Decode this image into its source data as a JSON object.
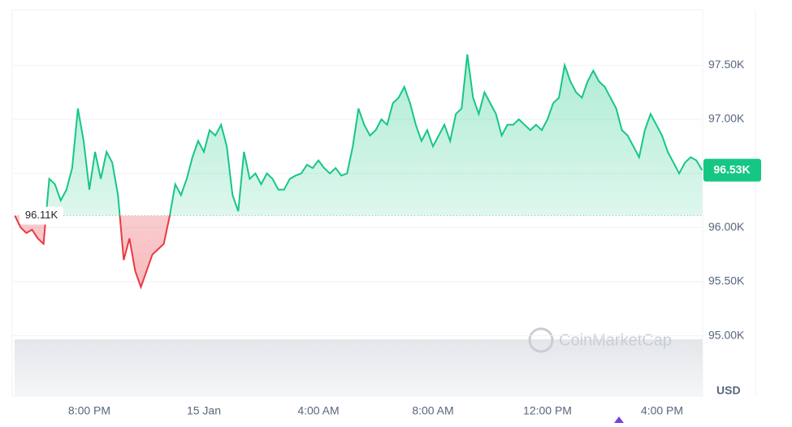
{
  "chart_data": {
    "type": "line",
    "categories": [
      null,
      null,
      null,
      null,
      null,
      null,
      null,
      null,
      null,
      null,
      null,
      null,
      null,
      "8:00 PM",
      null,
      null,
      null,
      null,
      null,
      null,
      null,
      null,
      null,
      null,
      null,
      null,
      null,
      null,
      null,
      null,
      null,
      null,
      null,
      "15 Jan",
      null,
      null,
      null,
      null,
      null,
      null,
      null,
      null,
      null,
      null,
      null,
      null,
      null,
      null,
      null,
      null,
      null,
      null,
      null,
      "4:00 AM",
      null,
      null,
      null,
      null,
      null,
      null,
      null,
      null,
      null,
      null,
      null,
      null,
      null,
      null,
      null,
      null,
      null,
      null,
      null,
      "8:00 AM",
      null,
      null,
      null,
      null,
      null,
      null,
      null,
      null,
      null,
      null,
      null,
      null,
      null,
      null,
      null,
      null,
      null,
      null,
      null,
      "12:00 PM",
      null,
      null,
      null,
      null,
      null,
      null,
      null,
      null,
      null,
      null,
      null,
      null,
      null,
      null,
      null,
      null,
      null,
      null,
      null,
      "4:00 PM",
      null,
      null,
      null,
      null,
      null,
      null,
      null
    ],
    "values": [
      96110,
      96000,
      95950,
      95980,
      95900,
      95850,
      96450,
      96400,
      96250,
      96350,
      96550,
      97100,
      96800,
      96350,
      96700,
      96450,
      96700,
      96600,
      96300,
      95700,
      95900,
      95600,
      95450,
      95600,
      95750,
      95800,
      95850,
      96100,
      96400,
      96300,
      96450,
      96650,
      96800,
      96700,
      96900,
      96850,
      96950,
      96750,
      96300,
      96150,
      96700,
      96450,
      96500,
      96400,
      96500,
      96450,
      96350,
      96350,
      96450,
      96480,
      96500,
      96580,
      96550,
      96620,
      96550,
      96500,
      96550,
      96480,
      96500,
      96750,
      97100,
      96950,
      96850,
      96900,
      97000,
      96950,
      97150,
      97200,
      97300,
      97150,
      96950,
      96800,
      96900,
      96750,
      96850,
      96950,
      96800,
      97050,
      97100,
      97600,
      97200,
      97050,
      97250,
      97150,
      97050,
      96850,
      96950,
      96950,
      97000,
      96950,
      96900,
      96950,
      96900,
      97000,
      97150,
      97200,
      97500,
      97350,
      97250,
      97200,
      97350,
      97450,
      97350,
      97300,
      97200,
      97100,
      96900,
      96850,
      96750,
      96650,
      96900,
      97050,
      96950,
      96850,
      96700,
      96600,
      96500,
      96600,
      96650,
      96620,
      96530
    ],
    "ylim": [
      94450,
      97990
    ],
    "yticks": [
      {
        "value": 95000,
        "label": "95.00K"
      },
      {
        "value": 95500,
        "label": "95.50K"
      },
      {
        "value": 96000,
        "label": "96.00K"
      },
      {
        "value": 96500,
        "label": "96.50K"
      },
      {
        "value": 97000,
        "label": "97.00K"
      },
      {
        "value": 97500,
        "label": "97.50K"
      }
    ],
    "baseline": {
      "value": 96110,
      "label": "96.11K"
    },
    "last_price": {
      "value": 96530,
      "label": "96.53K"
    },
    "y_unit": "USD",
    "watermark": "CoinMarketCap",
    "color_up": "#16c784",
    "color_down": "#ea3943",
    "grid": true
  }
}
